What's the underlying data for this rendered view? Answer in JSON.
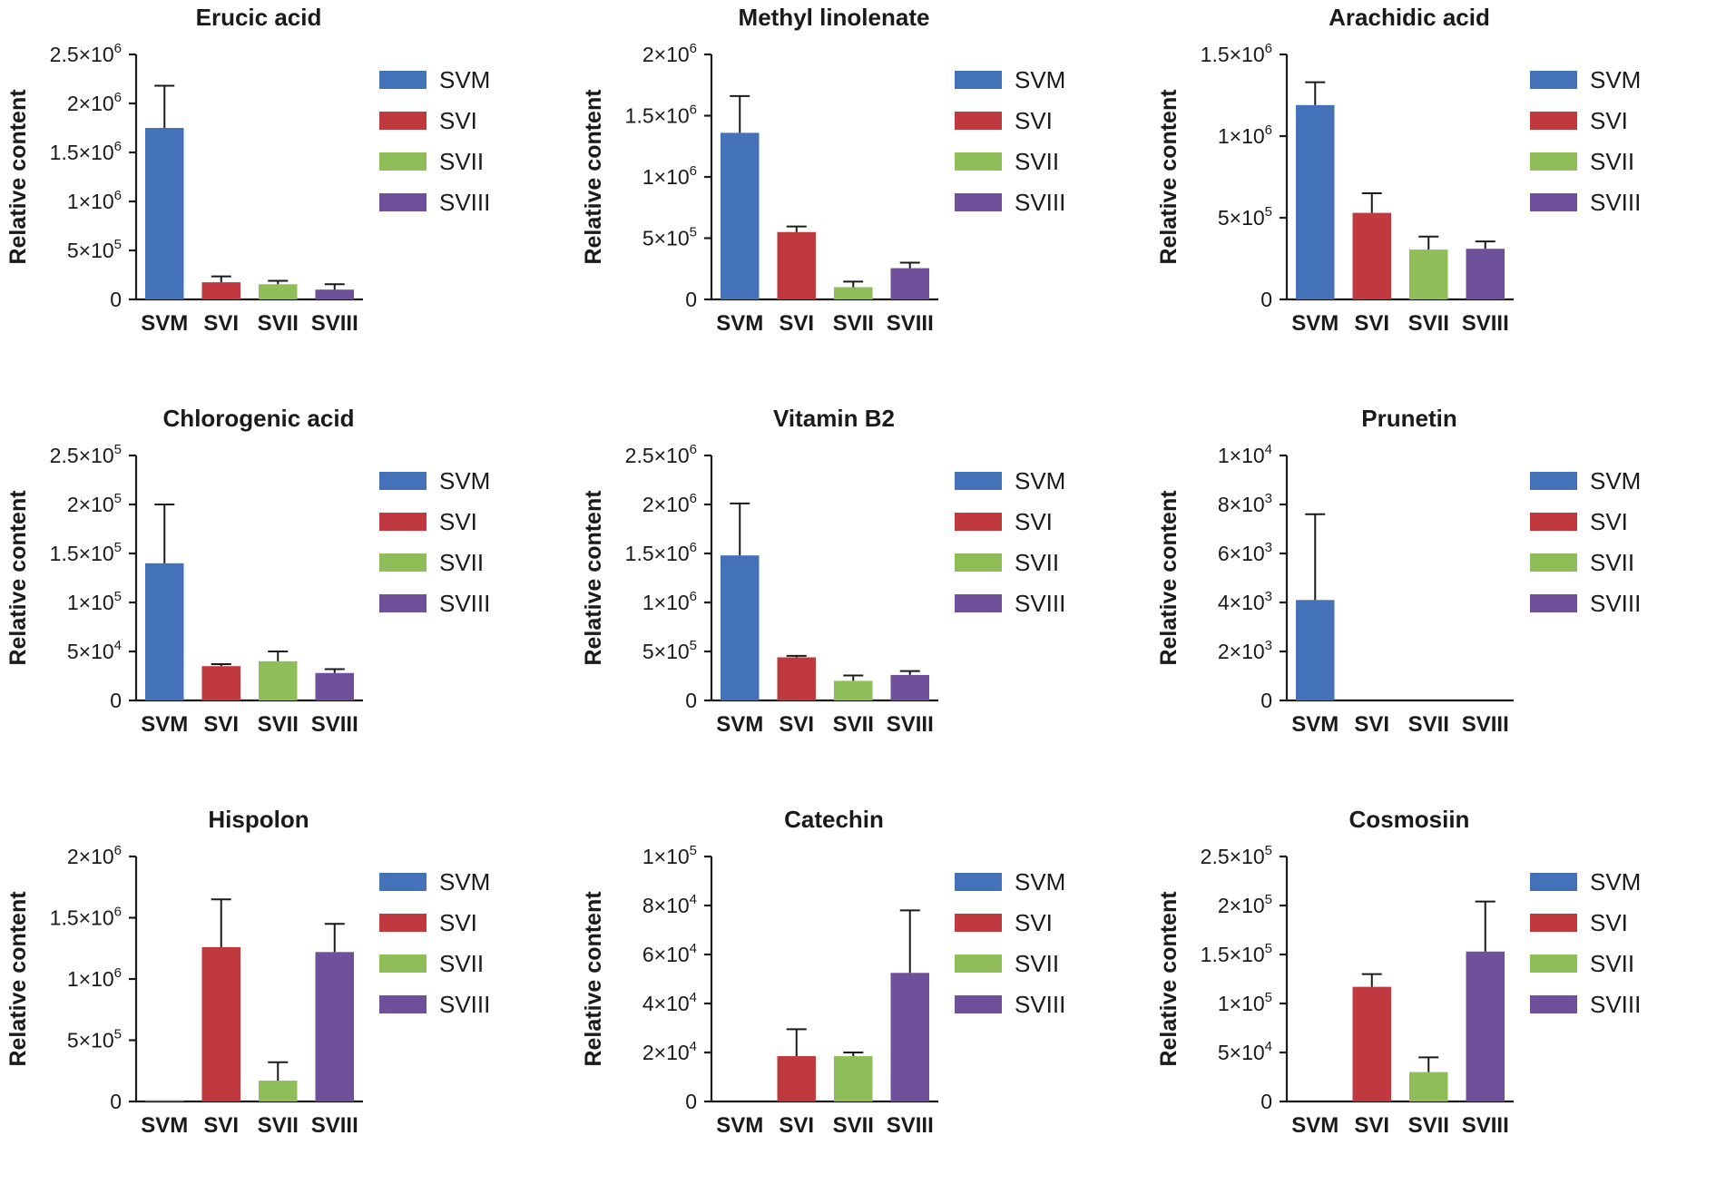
{
  "figure": {
    "colors": {
      "SVM": "#4472b8",
      "SVI": "#c0393e",
      "SVII": "#8fbd58",
      "SVIII": "#6e509b"
    },
    "legend": [
      "SVM",
      "SVI",
      "SVII",
      "SVIII"
    ]
  },
  "chart_data": [
    {
      "type": "bar",
      "title": "Erucic acid",
      "ylabel": "Relative content",
      "categories": [
        "SVM",
        "SVI",
        "SVII",
        "SVIII"
      ],
      "values": [
        1750000,
        175000,
        155000,
        100000
      ],
      "errors": [
        430000,
        60000,
        35000,
        55000
      ],
      "ylim": [
        0,
        2500000
      ],
      "yticks": [
        {
          "v": 0,
          "m": "0",
          "e": ""
        },
        {
          "v": 500000,
          "m": "5×10",
          "e": "5"
        },
        {
          "v": 1000000,
          "m": "1×10",
          "e": "6"
        },
        {
          "v": 1500000,
          "m": "1.5×10",
          "e": "6"
        },
        {
          "v": 2000000,
          "m": "2×10",
          "e": "6"
        },
        {
          "v": 2500000,
          "m": "2.5×10",
          "e": "6"
        }
      ]
    },
    {
      "type": "bar",
      "title": "Methyl linolenate",
      "ylabel": "Relative content",
      "categories": [
        "SVM",
        "SVI",
        "SVII",
        "SVIII"
      ],
      "values": [
        1360000,
        550000,
        100000,
        255000
      ],
      "errors": [
        300000,
        45000,
        45000,
        45000
      ],
      "ylim": [
        0,
        2000000
      ],
      "yticks": [
        {
          "v": 0,
          "m": "0",
          "e": ""
        },
        {
          "v": 500000,
          "m": "5×10",
          "e": "5"
        },
        {
          "v": 1000000,
          "m": "1×10",
          "e": "6"
        },
        {
          "v": 1500000,
          "m": "1.5×10",
          "e": "6"
        },
        {
          "v": 2000000,
          "m": "2×10",
          "e": "6"
        }
      ]
    },
    {
      "type": "bar",
      "title": "Arachidic acid",
      "ylabel": "Relative content",
      "categories": [
        "SVM",
        "SVI",
        "SVII",
        "SVIII"
      ],
      "values": [
        1190000,
        530000,
        305000,
        310000
      ],
      "errors": [
        140000,
        120000,
        80000,
        45000
      ],
      "ylim": [
        0,
        1500000
      ],
      "yticks": [
        {
          "v": 0,
          "m": "0",
          "e": ""
        },
        {
          "v": 500000,
          "m": "5×10",
          "e": "5"
        },
        {
          "v": 1000000,
          "m": "1×10",
          "e": "6"
        },
        {
          "v": 1500000,
          "m": "1.5×10",
          "e": "6"
        }
      ]
    },
    {
      "type": "bar",
      "title": "Chlorogenic acid",
      "ylabel": "Relative content",
      "categories": [
        "SVM",
        "SVI",
        "SVII",
        "SVIII"
      ],
      "values": [
        140000,
        35000,
        40000,
        28000
      ],
      "errors": [
        60000,
        2000,
        10000,
        4000
      ],
      "ylim": [
        0,
        250000
      ],
      "yticks": [
        {
          "v": 0,
          "m": "0",
          "e": ""
        },
        {
          "v": 50000,
          "m": "5×10",
          "e": "4"
        },
        {
          "v": 100000,
          "m": "1×10",
          "e": "5"
        },
        {
          "v": 150000,
          "m": "1.5×10",
          "e": "5"
        },
        {
          "v": 200000,
          "m": "2×10",
          "e": "5"
        },
        {
          "v": 250000,
          "m": "2.5×10",
          "e": "5"
        }
      ]
    },
    {
      "type": "bar",
      "title": "Vitamin B2",
      "ylabel": "Relative content",
      "categories": [
        "SVM",
        "SVI",
        "SVII",
        "SVIII"
      ],
      "values": [
        1480000,
        440000,
        200000,
        260000
      ],
      "errors": [
        530000,
        15000,
        55000,
        40000
      ],
      "ylim": [
        0,
        2500000
      ],
      "yticks": [
        {
          "v": 0,
          "m": "0",
          "e": ""
        },
        {
          "v": 500000,
          "m": "5×10",
          "e": "5"
        },
        {
          "v": 1000000,
          "m": "1×10",
          "e": "6"
        },
        {
          "v": 1500000,
          "m": "1.5×10",
          "e": "6"
        },
        {
          "v": 2000000,
          "m": "2×10",
          "e": "6"
        },
        {
          "v": 2500000,
          "m": "2.5×10",
          "e": "6"
        }
      ]
    },
    {
      "type": "bar",
      "title": "Prunetin",
      "ylabel": "Relative content",
      "categories": [
        "SVM",
        "SVI",
        "SVII",
        "SVIII"
      ],
      "values": [
        4100,
        0,
        0,
        0
      ],
      "errors": [
        3500,
        0,
        0,
        0
      ],
      "ylim": [
        0,
        10000
      ],
      "yticks": [
        {
          "v": 0,
          "m": "0",
          "e": ""
        },
        {
          "v": 2000,
          "m": "2×10",
          "e": "3"
        },
        {
          "v": 4000,
          "m": "4×10",
          "e": "3"
        },
        {
          "v": 6000,
          "m": "6×10",
          "e": "3"
        },
        {
          "v": 8000,
          "m": "8×10",
          "e": "3"
        },
        {
          "v": 10000,
          "m": "1×10",
          "e": "4"
        }
      ]
    },
    {
      "type": "bar",
      "title": "Hispolon",
      "ylabel": "Relative content",
      "categories": [
        "SVM",
        "SVI",
        "SVII",
        "SVIII"
      ],
      "values": [
        8000,
        1260000,
        170000,
        1220000
      ],
      "errors": [
        0,
        390000,
        150000,
        230000
      ],
      "ylim": [
        0,
        2000000
      ],
      "yticks": [
        {
          "v": 0,
          "m": "0",
          "e": ""
        },
        {
          "v": 500000,
          "m": "5×10",
          "e": "5"
        },
        {
          "v": 1000000,
          "m": "1×10",
          "e": "6"
        },
        {
          "v": 1500000,
          "m": "1.5×10",
          "e": "6"
        },
        {
          "v": 2000000,
          "m": "2×10",
          "e": "6"
        }
      ]
    },
    {
      "type": "bar",
      "title": "Catechin",
      "ylabel": "Relative content",
      "categories": [
        "SVM",
        "SVI",
        "SVII",
        "SVIII"
      ],
      "values": [
        0,
        18500,
        18500,
        52500
      ],
      "errors": [
        0,
        11000,
        1500,
        25500
      ],
      "ylim": [
        0,
        100000
      ],
      "yticks": [
        {
          "v": 0,
          "m": "0",
          "e": ""
        },
        {
          "v": 20000,
          "m": "2×10",
          "e": "4"
        },
        {
          "v": 40000,
          "m": "4×10",
          "e": "4"
        },
        {
          "v": 60000,
          "m": "6×10",
          "e": "4"
        },
        {
          "v": 80000,
          "m": "8×10",
          "e": "4"
        },
        {
          "v": 100000,
          "m": "1×10",
          "e": "5"
        }
      ]
    },
    {
      "type": "bar",
      "title": "Cosmosiin",
      "ylabel": "Relative content",
      "categories": [
        "SVM",
        "SVI",
        "SVII",
        "SVIII"
      ],
      "values": [
        0,
        117000,
        30000,
        153000
      ],
      "errors": [
        0,
        13000,
        15000,
        51000
      ],
      "ylim": [
        0,
        250000
      ],
      "yticks": [
        {
          "v": 0,
          "m": "0",
          "e": ""
        },
        {
          "v": 50000,
          "m": "5×10",
          "e": "4"
        },
        {
          "v": 100000,
          "m": "1×10",
          "e": "5"
        },
        {
          "v": 150000,
          "m": "1.5×10",
          "e": "5"
        },
        {
          "v": 200000,
          "m": "2×10",
          "e": "5"
        },
        {
          "v": 250000,
          "m": "2.5×10",
          "e": "5"
        }
      ]
    }
  ]
}
